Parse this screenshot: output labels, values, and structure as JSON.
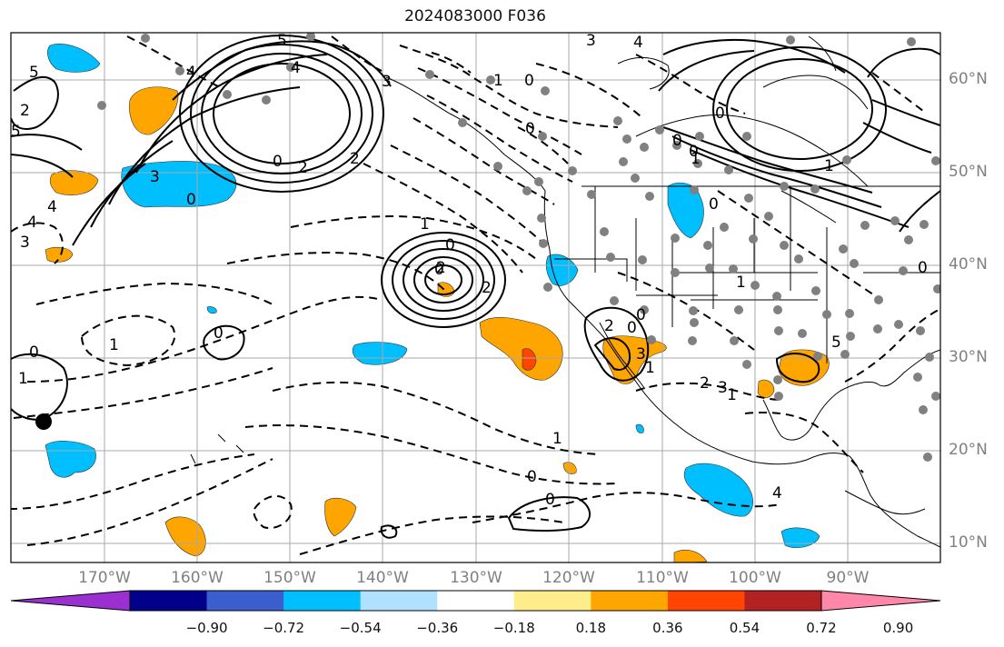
{
  "title": "2024083000 F036",
  "latitude_labels": [
    "60°N",
    "50°N",
    "40°N",
    "30°N",
    "20°N",
    "10°N"
  ],
  "longitude_labels": [
    "170°W",
    "160°W",
    "150°W",
    "140°W",
    "130°W",
    "120°W",
    "110°W",
    "100°W",
    "90°W"
  ],
  "colorbar": {
    "colors": [
      "#9b30d0",
      "#00008b",
      "#3a5fcd",
      "#00bfff",
      "#b0e2ff",
      "#ffffff",
      "#ffec8b",
      "#ffa500",
      "#ff4500",
      "#b22222",
      "#ff88aa"
    ],
    "tick_labels": [
      "−0.90",
      "−0.72",
      "−0.54",
      "−0.36",
      "−0.18",
      "0.18",
      "0.36",
      "0.54",
      "0.72",
      "0.90"
    ]
  },
  "contour_labels": [
    "3",
    "4",
    "4",
    "5",
    "2",
    "4",
    "5",
    "3",
    "0",
    "2",
    "0",
    "2",
    "4",
    "3",
    "0",
    "1",
    "0",
    "2",
    "1",
    "1",
    "0",
    "0",
    "1",
    "0",
    "0",
    "4",
    "5",
    "3",
    "2",
    "1",
    "0",
    "0",
    "1",
    "2",
    "3",
    "4",
    "5",
    "1",
    "0",
    "2",
    "3",
    "1",
    "0",
    "0",
    "1",
    "0",
    "0",
    "0",
    "1",
    "0"
  ],
  "styles": {
    "positive_contour": "solid",
    "negative_contour": "dashed",
    "station_color": "#808080",
    "grid_color": "#a9a9a9"
  }
}
